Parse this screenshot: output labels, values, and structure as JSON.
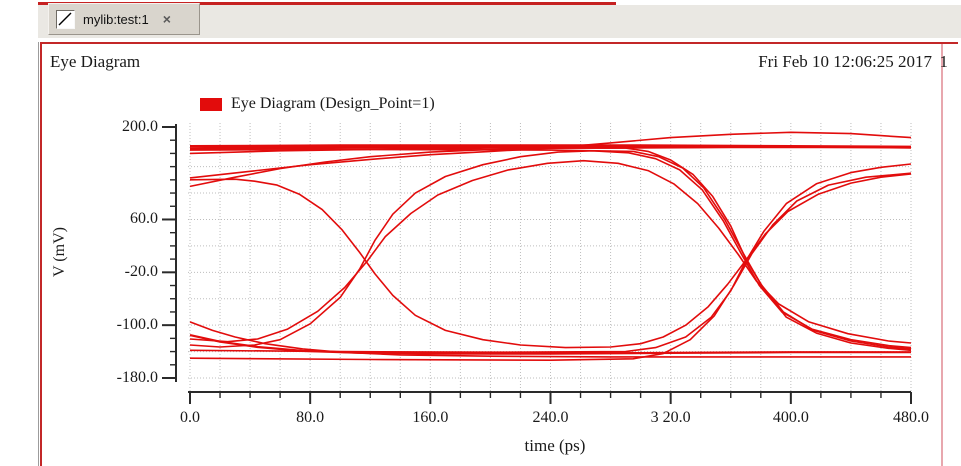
{
  "window": {
    "accent_color": "#c62121",
    "tab_bar": {
      "tab": {
        "icon": "waveform-plot-icon",
        "label": "mylib:test:1",
        "close_glyph": "×"
      }
    }
  },
  "panel": {
    "title": "Eye Diagram",
    "timestamp": "Fri Feb 10 12:06:25 2017",
    "page_number": "1",
    "border_color": "#c32728",
    "legend": {
      "label": "Eye Diagram (Design_Point=1)",
      "swatch_color": "#e20c0c"
    }
  },
  "chart_data": {
    "type": "line",
    "title": "Eye Diagram (Design_Point=1)",
    "xlabel": "time (ps)",
    "ylabel": "V (mV)",
    "xlim": [
      0,
      480
    ],
    "ylim": [
      -180,
      200
    ],
    "x_major_ticks": [
      0,
      80,
      160,
      240,
      320,
      400,
      480
    ],
    "x_tick_labels": [
      "0.0",
      "80.0",
      "160.0",
      "240.0",
      "3 20.0",
      "400.0",
      "480.0"
    ],
    "x_minor_tick_step": 20,
    "y_major_ticks": [
      200,
      60,
      -20,
      -100,
      -180
    ],
    "y_tick_labels": [
      "200.0",
      "60.0",
      "-20.0",
      "-100.0",
      "-180.0"
    ],
    "y_minor_tick_step": 20,
    "grid": {
      "x_step_ps": 20,
      "y_step_mv": 40,
      "style": "dotted",
      "color": "#bdbdbd"
    },
    "legend_position": "top-left",
    "series_color": "#e20c0c",
    "units": "points are [time_ps, voltage_mV]",
    "traces": [
      {
        "name": "high-flat-1",
        "width": 2.4,
        "points": [
          [
            0,
            167
          ],
          [
            60,
            168
          ],
          [
            140,
            169
          ],
          [
            240,
            170
          ],
          [
            340,
            170
          ],
          [
            420,
            170
          ],
          [
            480,
            169
          ]
        ]
      },
      {
        "name": "high-flat-2",
        "width": 2.4,
        "points": [
          [
            0,
            171
          ],
          [
            100,
            172
          ],
          [
            200,
            172
          ],
          [
            300,
            172
          ],
          [
            400,
            171
          ],
          [
            480,
            170
          ]
        ]
      },
      {
        "name": "high-settle",
        "width": 1.6,
        "points": [
          [
            0,
            160
          ],
          [
            60,
            164
          ],
          [
            120,
            166
          ],
          [
            200,
            168
          ],
          [
            280,
            168
          ],
          [
            360,
            169
          ],
          [
            480,
            169
          ]
        ]
      },
      {
        "name": "slow-rise-overshoot",
        "width": 1.6,
        "points": [
          [
            0,
            123
          ],
          [
            40,
            133
          ],
          [
            80,
            143
          ],
          [
            120,
            151
          ],
          [
            160,
            158
          ],
          [
            200,
            163
          ],
          [
            240,
            168
          ],
          [
            280,
            176
          ],
          [
            320,
            184
          ],
          [
            360,
            189
          ],
          [
            400,
            192
          ],
          [
            440,
            190
          ],
          [
            480,
            184
          ]
        ]
      },
      {
        "name": "rise-tail-settle",
        "width": 1.6,
        "points": [
          [
            0,
            110
          ],
          [
            30,
            124
          ],
          [
            60,
            137
          ],
          [
            90,
            147
          ],
          [
            120,
            155
          ],
          [
            160,
            162
          ],
          [
            200,
            166
          ],
          [
            250,
            168
          ],
          [
            320,
            169
          ],
          [
            400,
            170
          ],
          [
            480,
            170
          ]
        ]
      },
      {
        "name": "fall-right-1",
        "width": 1.6,
        "points": [
          [
            0,
            170
          ],
          [
            100,
            170
          ],
          [
            200,
            169
          ],
          [
            290,
            168
          ],
          [
            305,
            163
          ],
          [
            320,
            150
          ],
          [
            335,
            128
          ],
          [
            348,
            95
          ],
          [
            360,
            50
          ],
          [
            370,
            0
          ],
          [
            382,
            -45
          ],
          [
            397,
            -88
          ],
          [
            417,
            -112
          ],
          [
            440,
            -127
          ],
          [
            465,
            -135
          ],
          [
            480,
            -138
          ]
        ]
      },
      {
        "name": "fall-right-2",
        "width": 1.6,
        "points": [
          [
            0,
            165
          ],
          [
            120,
            166
          ],
          [
            240,
            165
          ],
          [
            295,
            163
          ],
          [
            312,
            155
          ],
          [
            328,
            138
          ],
          [
            342,
            108
          ],
          [
            356,
            60
          ],
          [
            368,
            10
          ],
          [
            380,
            -38
          ],
          [
            395,
            -80
          ],
          [
            415,
            -108
          ],
          [
            440,
            -124
          ],
          [
            465,
            -133
          ],
          [
            480,
            -136
          ]
        ]
      },
      {
        "name": "rise-right-1",
        "width": 1.6,
        "points": [
          [
            0,
            -138
          ],
          [
            100,
            -140
          ],
          [
            200,
            -141
          ],
          [
            290,
            -140
          ],
          [
            310,
            -134
          ],
          [
            330,
            -118
          ],
          [
            347,
            -88
          ],
          [
            360,
            -48
          ],
          [
            370,
            -3
          ],
          [
            382,
            42
          ],
          [
            397,
            84
          ],
          [
            417,
            114
          ],
          [
            440,
            131
          ],
          [
            460,
            139
          ],
          [
            480,
            144
          ]
        ]
      },
      {
        "name": "rise-right-2",
        "width": 1.6,
        "points": [
          [
            0,
            -150
          ],
          [
            120,
            -152
          ],
          [
            240,
            -153
          ],
          [
            295,
            -151
          ],
          [
            315,
            -143
          ],
          [
            333,
            -122
          ],
          [
            349,
            -86
          ],
          [
            362,
            -40
          ],
          [
            374,
            8
          ],
          [
            388,
            52
          ],
          [
            404,
            88
          ],
          [
            425,
            112
          ],
          [
            450,
            124
          ],
          [
            480,
            130
          ]
        ]
      },
      {
        "name": "v-trace-101",
        "width": 1.6,
        "points": [
          [
            0,
            120
          ],
          [
            30,
            121
          ],
          [
            43,
            118
          ],
          [
            58,
            112
          ],
          [
            73,
            98
          ],
          [
            88,
            75
          ],
          [
            101,
            45
          ],
          [
            113,
            10
          ],
          [
            123,
            -22
          ],
          [
            135,
            -55
          ],
          [
            150,
            -85
          ],
          [
            170,
            -108
          ],
          [
            195,
            -122
          ],
          [
            220,
            -130
          ],
          [
            250,
            -134
          ],
          [
            280,
            -133
          ],
          [
            300,
            -128
          ],
          [
            315,
            -118
          ],
          [
            330,
            -100
          ],
          [
            345,
            -72
          ],
          [
            358,
            -38
          ],
          [
            370,
            -2
          ],
          [
            383,
            38
          ],
          [
            398,
            72
          ],
          [
            418,
            98
          ],
          [
            440,
            115
          ],
          [
            460,
            124
          ],
          [
            480,
            129
          ]
        ]
      },
      {
        "name": "fall-tail-low-1",
        "width": 1.6,
        "points": [
          [
            0,
            -95
          ],
          [
            15,
            -108
          ],
          [
            30,
            -118
          ],
          [
            50,
            -128
          ],
          [
            75,
            -136
          ],
          [
            100,
            -141
          ],
          [
            140,
            -145
          ],
          [
            200,
            -147
          ],
          [
            280,
            -148
          ],
          [
            360,
            -148
          ],
          [
            480,
            -148
          ]
        ]
      },
      {
        "name": "fall-tail-low-2",
        "width": 2.2,
        "points": [
          [
            0,
            -115
          ],
          [
            20,
            -125
          ],
          [
            45,
            -133
          ],
          [
            75,
            -139
          ],
          [
            115,
            -142
          ],
          [
            170,
            -143
          ],
          [
            240,
            -143
          ],
          [
            320,
            -142
          ],
          [
            400,
            -141
          ],
          [
            480,
            -141
          ]
        ]
      },
      {
        "name": "arc-010-1",
        "width": 1.6,
        "points": [
          [
            0,
            -130
          ],
          [
            20,
            -133
          ],
          [
            43,
            -130
          ],
          [
            60,
            -122
          ],
          [
            80,
            -98
          ],
          [
            100,
            -58
          ],
          [
            113,
            -15
          ],
          [
            123,
            28
          ],
          [
            135,
            68
          ],
          [
            150,
            100
          ],
          [
            170,
            125
          ],
          [
            195,
            143
          ],
          [
            220,
            155
          ],
          [
            245,
            162
          ],
          [
            268,
            164
          ],
          [
            292,
            161
          ],
          [
            310,
            152
          ],
          [
            326,
            135
          ],
          [
            341,
            105
          ],
          [
            355,
            58
          ],
          [
            367,
            8
          ],
          [
            379,
            -40
          ],
          [
            394,
            -80
          ],
          [
            414,
            -106
          ],
          [
            440,
            -122
          ],
          [
            465,
            -131
          ],
          [
            480,
            -134
          ]
        ]
      },
      {
        "name": "arc-010-2",
        "width": 1.6,
        "points": [
          [
            0,
            -121
          ],
          [
            25,
            -125
          ],
          [
            45,
            -121
          ],
          [
            65,
            -106
          ],
          [
            85,
            -79
          ],
          [
            103,
            -43
          ],
          [
            118,
            -3
          ],
          [
            130,
            34
          ],
          [
            147,
            69
          ],
          [
            165,
            97
          ],
          [
            188,
            119
          ],
          [
            212,
            135
          ],
          [
            238,
            145
          ],
          [
            262,
            149
          ],
          [
            285,
            145
          ],
          [
            305,
            134
          ],
          [
            322,
            114
          ],
          [
            338,
            84
          ],
          [
            352,
            47
          ],
          [
            365,
            7
          ],
          [
            377,
            -33
          ],
          [
            392,
            -68
          ],
          [
            412,
            -95
          ],
          [
            438,
            -113
          ],
          [
            465,
            -124
          ],
          [
            480,
            -127
          ]
        ]
      }
    ]
  }
}
